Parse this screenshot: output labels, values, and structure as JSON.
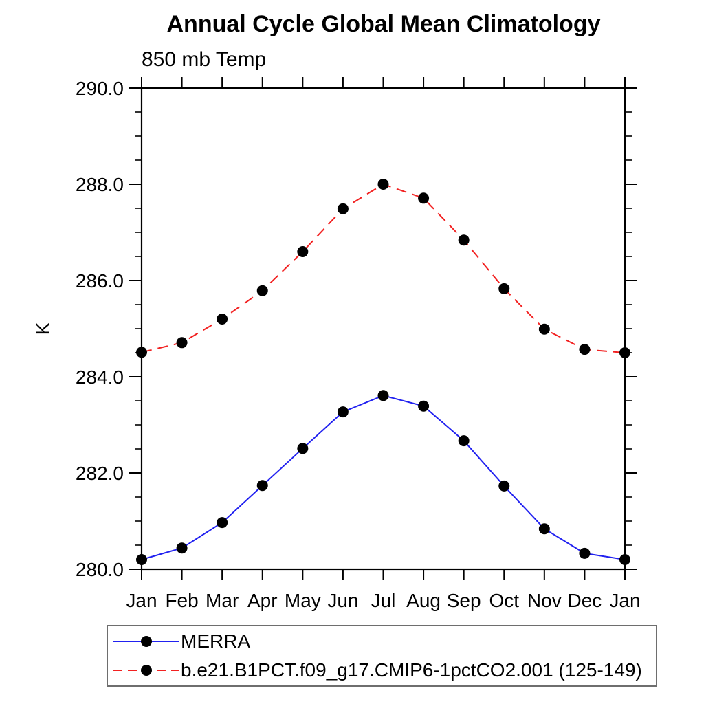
{
  "chart_data": {
    "type": "line",
    "title": "Annual Cycle Global Mean Climatology",
    "subtitle": "850 mb Temp",
    "ylabel": "K",
    "xlabel": "",
    "categories": [
      "Jan",
      "Feb",
      "Mar",
      "Apr",
      "May",
      "Jun",
      "Jul",
      "Aug",
      "Sep",
      "Oct",
      "Nov",
      "Dec",
      "Jan"
    ],
    "ylim": [
      280.0,
      290.0
    ],
    "yticks": {
      "values": [
        280.0,
        282.0,
        284.0,
        286.0,
        288.0,
        290.0
      ],
      "labels": [
        "280.0",
        "282.0",
        "284.0",
        "286.0",
        "288.0",
        "290.0"
      ],
      "minor_step": 0.5
    },
    "grid": false,
    "frame": true,
    "tick_direction": "out",
    "legend_position": "bottom-left",
    "axis_color": "#000000",
    "marker_shape": "circle",
    "series": [
      {
        "name": "MERRA",
        "color": "#2121f0",
        "line_style": "solid",
        "marker_color": "#000000",
        "values": [
          280.2,
          280.44,
          280.97,
          281.74,
          282.51,
          283.27,
          283.61,
          283.39,
          282.67,
          281.73,
          280.84,
          280.33,
          280.2
        ]
      },
      {
        "name": "b.e21.B1PCT.f09_g17.CMIP6-1pctCO2.001 (125-149)",
        "color": "#f22121",
        "line_style": "dashed",
        "marker_color": "#000000",
        "values": [
          284.51,
          284.71,
          285.2,
          285.79,
          286.6,
          287.49,
          288.0,
          287.71,
          286.84,
          285.83,
          284.99,
          284.57,
          284.5
        ]
      }
    ]
  }
}
